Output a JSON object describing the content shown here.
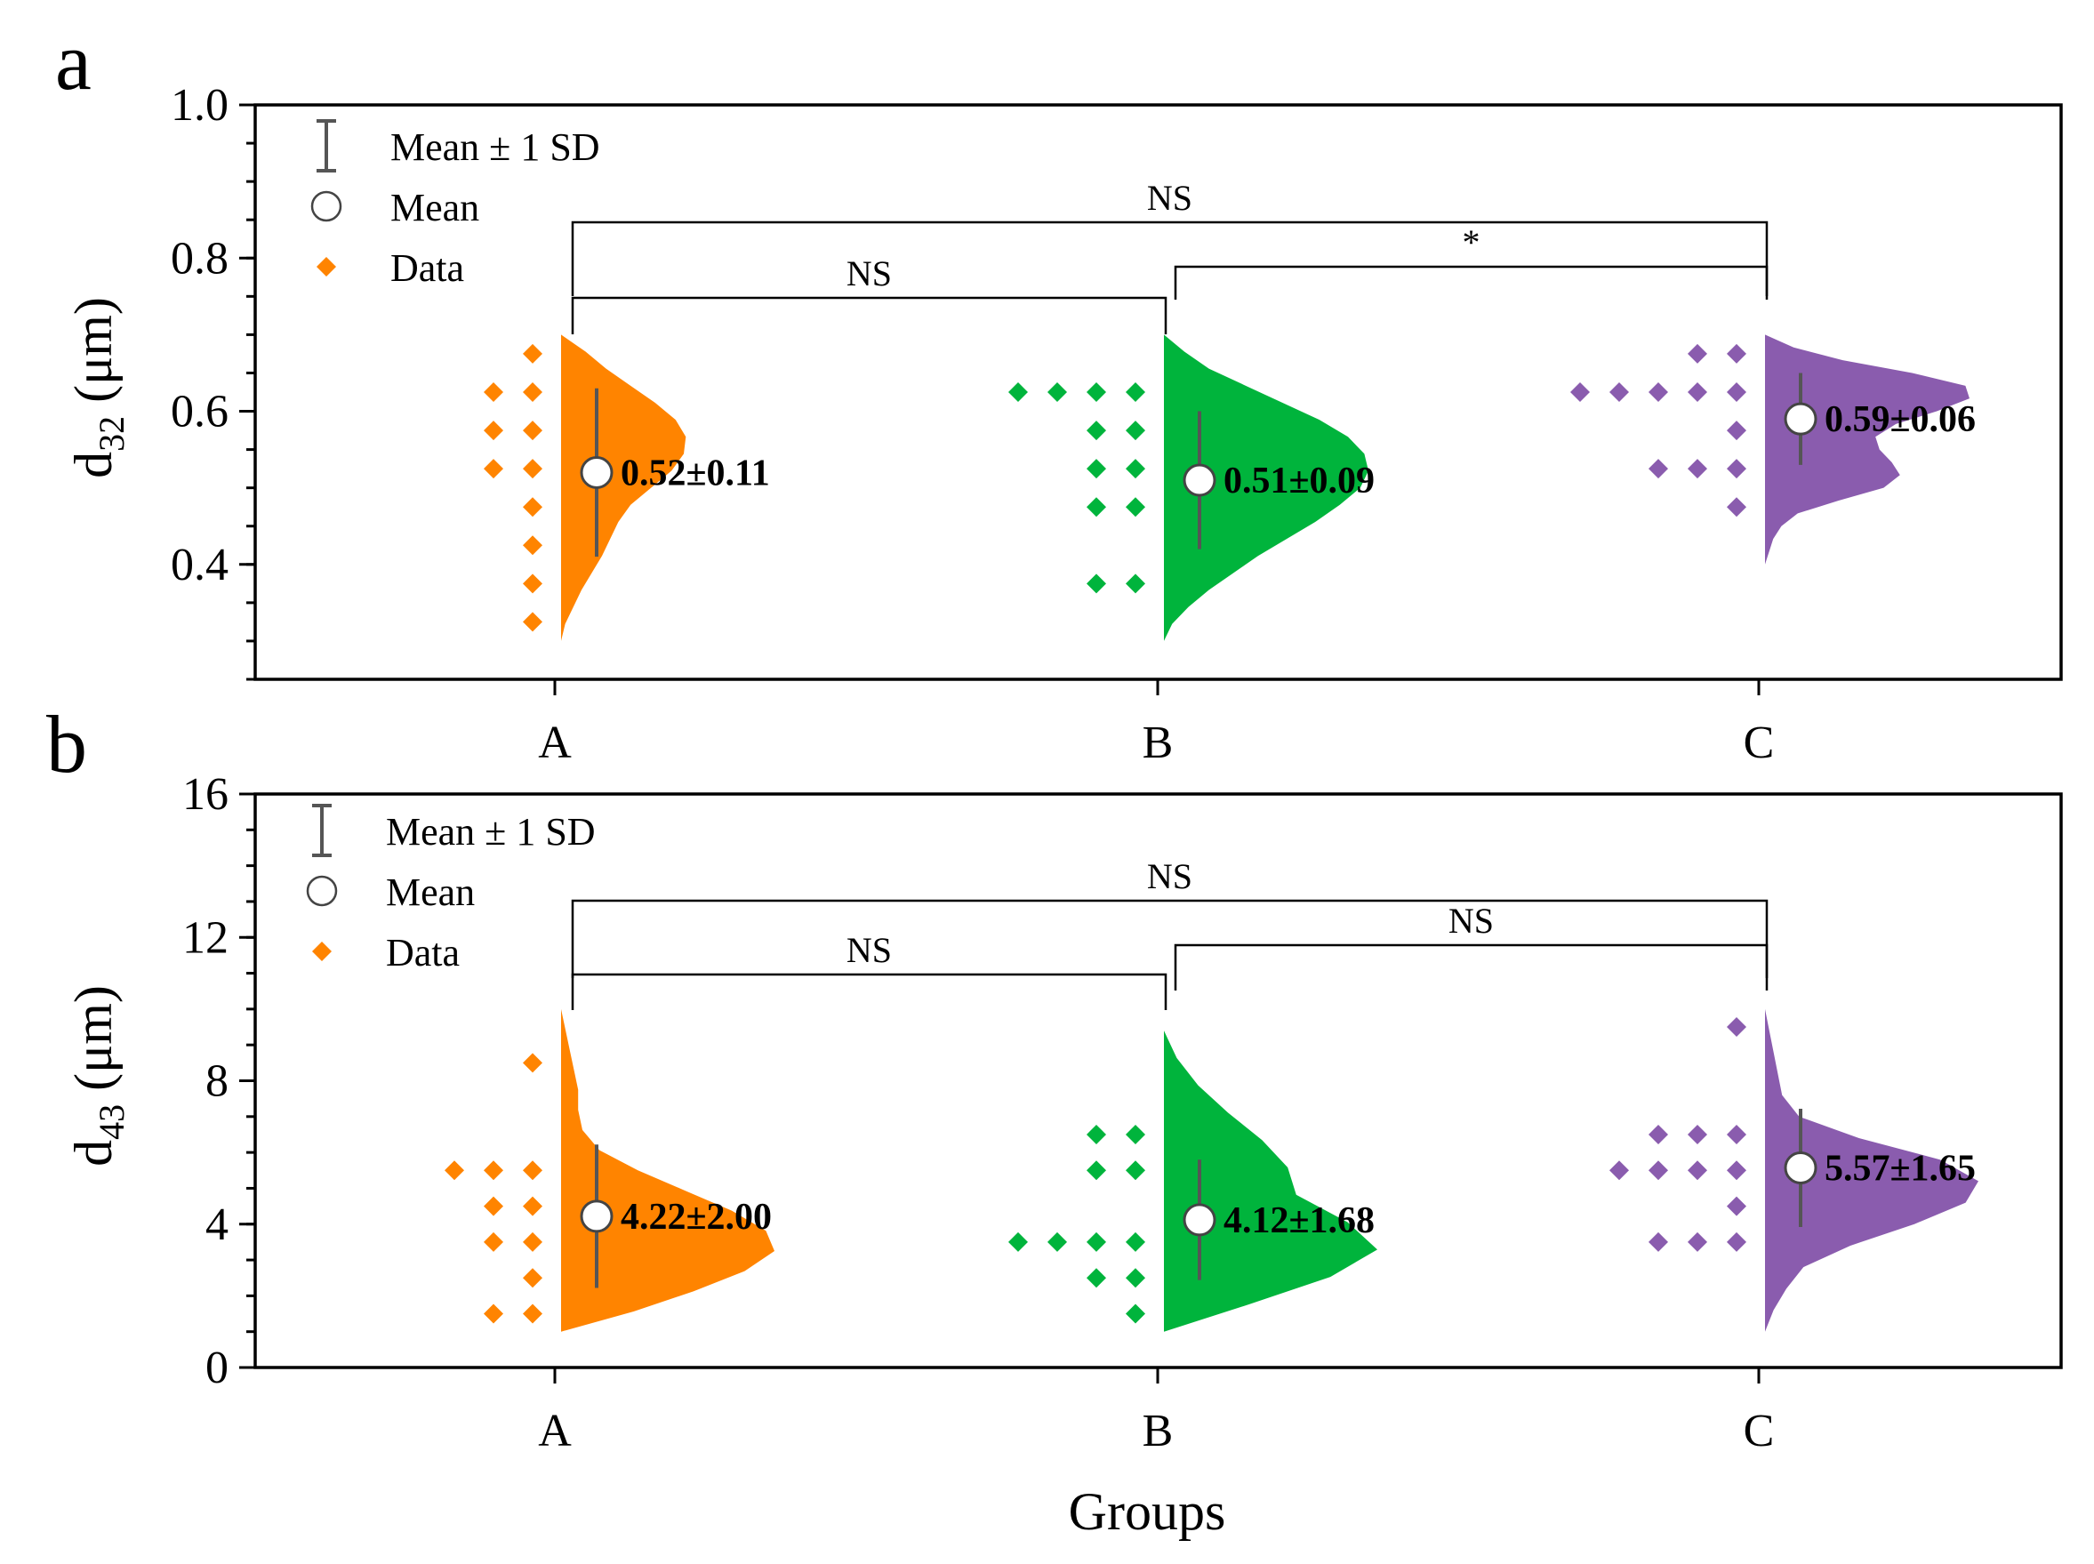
{
  "colors": {
    "A": "#ff8400",
    "B": "#00b43c",
    "C": "#8a5cae",
    "axis": "#000000",
    "whisker": "#555555"
  },
  "chart_data": [
    {
      "type": "violin",
      "panel": "a",
      "ylabel_main": "d",
      "ylabel_sub": "32",
      "ylabel_unit": "(μm)",
      "xlabel": "",
      "categories": [
        "A",
        "B",
        "C"
      ],
      "ylim": [
        0.25,
        1.0
      ],
      "yticks": [
        0.4,
        0.6,
        0.8,
        1.0
      ],
      "ytick_labels": [
        "0.4",
        "0.6",
        "0.8",
        "1.0"
      ],
      "legend": [
        {
          "kind": "errorbar",
          "label": "Mean ± 1 SD"
        },
        {
          "kind": "mean",
          "label": "Mean"
        },
        {
          "kind": "data",
          "label": "Data"
        }
      ],
      "groups": [
        {
          "name": "A",
          "mean": 0.52,
          "sd": 0.11,
          "label": "0.52±0.11",
          "points": [
            0.325,
            0.375,
            0.425,
            0.475,
            0.525,
            0.525,
            0.575,
            0.575,
            0.625,
            0.625,
            0.675
          ],
          "density": [
            [
              0.3,
              1.0
            ],
            [
              0.34,
              1.0
            ],
            [
              0.38,
              1.0
            ],
            [
              0.4,
              1.0
            ],
            [
              0.42,
              1.0
            ],
            [
              0.44,
              1.0
            ],
            [
              0.46,
              1.0
            ],
            [
              0.48,
              1.0
            ],
            [
              0.5,
              1.0
            ],
            [
              0.52,
              1.0
            ],
            [
              0.54,
              1.0
            ],
            [
              0.56,
              1.0
            ],
            [
              0.58,
              1.0
            ],
            [
              0.6,
              1.0
            ],
            [
              0.62,
              1.0
            ],
            [
              0.64,
              1.0
            ],
            [
              0.66,
              1.0
            ],
            [
              0.68,
              1.0
            ],
            [
              0.7,
              1.0
            ]
          ],
          "density_width": [
            0.0,
            0.02,
            0.06,
            0.1,
            0.15,
            0.2,
            0.24,
            0.28,
            0.34,
            0.44,
            0.54,
            0.6,
            0.61,
            0.56,
            0.46,
            0.34,
            0.22,
            0.12,
            0.0
          ]
        },
        {
          "name": "B",
          "mean": 0.51,
          "sd": 0.09,
          "label": "0.51±0.09",
          "points": [
            0.375,
            0.375,
            0.475,
            0.475,
            0.525,
            0.525,
            0.575,
            0.575,
            0.625,
            0.625,
            0.625,
            0.625
          ],
          "density": [],
          "density_width": [
            0.0,
            0.04,
            0.12,
            0.22,
            0.34,
            0.46,
            0.6,
            0.74,
            0.86,
            0.96,
            1.0,
            0.98,
            0.9,
            0.76,
            0.58,
            0.4,
            0.22,
            0.1,
            0.0
          ]
        },
        {
          "name": "C",
          "mean": 0.59,
          "sd": 0.06,
          "label": "0.59±0.06",
          "points": [
            0.475,
            0.525,
            0.525,
            0.525,
            0.575,
            0.625,
            0.625,
            0.625,
            0.625,
            0.625,
            0.675,
            0.675
          ],
          "density": [],
          "density_width": [
            0.0,
            0.02,
            0.04,
            0.08,
            0.16,
            0.36,
            0.58,
            0.66,
            0.62,
            0.56,
            0.54,
            0.64,
            0.84,
            1.0,
            0.98,
            0.72,
            0.38,
            0.14,
            0.0
          ]
        }
      ],
      "density_grid": [
        0.3,
        0.32,
        0.34,
        0.36,
        0.38,
        0.4,
        0.42,
        0.44,
        0.46,
        0.48,
        0.5,
        0.52,
        0.54,
        0.56,
        0.58,
        0.6,
        0.62,
        0.64,
        0.66,
        0.68,
        0.7
      ],
      "brackets": [
        {
          "from": "A",
          "to": "B",
          "label": "NS"
        },
        {
          "from": "B",
          "to": "C",
          "label": "*"
        },
        {
          "from": "A",
          "to": "C",
          "label": "NS"
        }
      ]
    },
    {
      "type": "violin",
      "panel": "b",
      "ylabel_main": "d",
      "ylabel_sub": "43",
      "ylabel_unit": "(μm)",
      "xlabel": "Groups",
      "categories": [
        "A",
        "B",
        "C"
      ],
      "ylim": [
        0,
        16
      ],
      "yticks": [
        0,
        4,
        8,
        12,
        16
      ],
      "ytick_labels": [
        "0",
        "4",
        "8",
        "12",
        "16"
      ],
      "legend": [
        {
          "kind": "errorbar",
          "label": "Mean ± 1 SD"
        },
        {
          "kind": "mean",
          "label": "Mean"
        },
        {
          "kind": "data",
          "label": "Data"
        }
      ],
      "groups": [
        {
          "name": "A",
          "mean": 4.22,
          "sd": 2.0,
          "label": "4.22±2.00",
          "points": [
            1.5,
            1.5,
            2.5,
            3.5,
            3.5,
            4.5,
            4.5,
            5.5,
            5.5,
            5.5,
            8.5
          ],
          "density": [],
          "density_width": [
            0.0,
            0.34,
            0.62,
            0.86,
            1.0,
            0.96,
            0.8,
            0.58,
            0.36,
            0.18,
            0.1,
            0.08,
            0.08,
            0.06,
            0.04,
            0.02,
            0.0
          ]
        },
        {
          "name": "B",
          "mean": 4.12,
          "sd": 1.68,
          "label": "4.12±1.68",
          "points": [
            1.5,
            2.5,
            2.5,
            3.5,
            3.5,
            3.5,
            3.5,
            5.5,
            5.5,
            6.5,
            6.5
          ],
          "density": [],
          "density_width": [
            0.0,
            0.4,
            0.78,
            1.0,
            0.86,
            0.62,
            0.58,
            0.46,
            0.3,
            0.16,
            0.06,
            0.0
          ]
        },
        {
          "name": "C",
          "mean": 5.57,
          "sd": 1.65,
          "label": "5.57±1.65",
          "points": [
            3.5,
            3.5,
            3.5,
            4.5,
            5.5,
            5.5,
            5.5,
            5.5,
            6.5,
            6.5,
            6.5,
            9.5
          ],
          "density": [],
          "density_width": [
            0.0,
            0.04,
            0.1,
            0.18,
            0.4,
            0.7,
            0.94,
            1.0,
            0.82,
            0.44,
            0.16,
            0.08,
            0.06,
            0.04,
            0.02,
            0.0
          ]
        }
      ],
      "brackets": [
        {
          "from": "A",
          "to": "B",
          "label": "NS"
        },
        {
          "from": "B",
          "to": "C",
          "label": "NS"
        },
        {
          "from": "A",
          "to": "C",
          "label": "NS"
        }
      ]
    }
  ]
}
